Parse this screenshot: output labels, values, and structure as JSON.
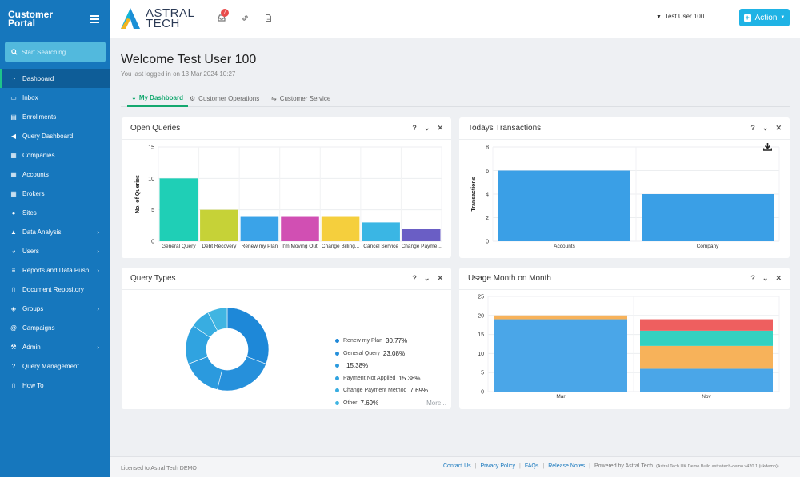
{
  "sidebar": {
    "title": "Customer\nPortal",
    "search_placeholder": "Start Searching...",
    "items": [
      {
        "label": "Dashboard",
        "icon": "tachometer-icon",
        "chevron": false,
        "active": true
      },
      {
        "label": "Inbox",
        "icon": "inbox-icon",
        "chevron": false
      },
      {
        "label": "Enrollments",
        "icon": "id-card-icon",
        "chevron": false
      },
      {
        "label": "Query Dashboard",
        "icon": "megaphone-icon",
        "chevron": false
      },
      {
        "label": "Companies",
        "icon": "building-icon",
        "chevron": false
      },
      {
        "label": "Accounts",
        "icon": "building-icon",
        "chevron": false
      },
      {
        "label": "Brokers",
        "icon": "building-icon",
        "chevron": false
      },
      {
        "label": "Sites",
        "icon": "map-marker-icon",
        "chevron": false
      },
      {
        "label": "Data Analysis",
        "icon": "chart-icon",
        "chevron": true
      },
      {
        "label": "Users",
        "icon": "users-icon",
        "chevron": true
      },
      {
        "label": "Reports and Data Push",
        "icon": "list-icon",
        "chevron": true
      },
      {
        "label": "Document Repository",
        "icon": "document-icon",
        "chevron": false
      },
      {
        "label": "Groups",
        "icon": "layers-icon",
        "chevron": true
      },
      {
        "label": "Campaigns",
        "icon": "at-icon",
        "chevron": false
      },
      {
        "label": "Admin",
        "icon": "wrench-icon",
        "chevron": true
      },
      {
        "label": "Query Management",
        "icon": "question-icon",
        "chevron": false
      },
      {
        "label": "How To",
        "icon": "document-icon",
        "chevron": false
      }
    ]
  },
  "topbar": {
    "logo_text": "ASTRAL\nTECH",
    "notification_count": "7",
    "user_name": "Test User 100",
    "action_label": "Action"
  },
  "main": {
    "welcome": "Welcome Test User 100",
    "last_login": "You last logged in on 13 Mar 2024 10:27",
    "tabs": [
      {
        "label": "My Dashboard",
        "icon": "dashboard-icon",
        "active": true
      },
      {
        "label": "Customer Operations",
        "icon": "cogs-icon",
        "active": false
      },
      {
        "label": "Customer Service",
        "icon": "handshake-icon",
        "active": false
      }
    ]
  },
  "cards": {
    "open_queries": "Open Queries",
    "todays_transactions": "Todays Transactions",
    "query_types": "Query Types",
    "usage_month": "Usage Month on Month",
    "more": "More..."
  },
  "chart_data": [
    {
      "id": "open_queries",
      "type": "bar",
      "ylabel": "No. of Queries",
      "ylim": [
        0,
        15
      ],
      "yticks": [
        0,
        5,
        10,
        15
      ],
      "grid": true,
      "categories": [
        "General Query",
        "Debt Recovery",
        "Renew my Plan",
        "I'm Moving Out",
        "Change Billing...",
        "Cancel Service",
        "Change Payme..."
      ],
      "values": [
        10,
        5,
        4,
        4,
        4,
        3,
        2
      ],
      "colors": [
        "#1fcfb6",
        "#c6d237",
        "#3aa3e8",
        "#d14fb3",
        "#f5cf3d",
        "#3ab6e4",
        "#6a5ec5"
      ]
    },
    {
      "id": "todays_transactions",
      "type": "bar",
      "ylabel": "Transactions",
      "ylim": [
        0,
        8
      ],
      "yticks": [
        0,
        2,
        4,
        6,
        8
      ],
      "grid": true,
      "categories": [
        "Accounts",
        "Company"
      ],
      "values": [
        6,
        4
      ],
      "colors": [
        "#3a9fe6",
        "#3a9fe6"
      ]
    },
    {
      "id": "query_types",
      "type": "pie",
      "series": [
        {
          "name": "Renew my Plan",
          "value": "30.77%",
          "pct": 30.77,
          "color": "#1e88d8"
        },
        {
          "name": "General Query",
          "value": "23.08%",
          "pct": 23.08,
          "color": "#2690db"
        },
        {
          "name": "",
          "value": "15.38%",
          "pct": 15.38,
          "color": "#2b9ade"
        },
        {
          "name": "Payment Not Applied",
          "value": "15.38%",
          "pct": 15.38,
          "color": "#30a3e0"
        },
        {
          "name": "Change Payment Method",
          "value": "7.69%",
          "pct": 7.69,
          "color": "#38ade1"
        },
        {
          "name": "Other",
          "value": "7.69%",
          "pct": 7.69,
          "color": "#40b5e2"
        }
      ]
    },
    {
      "id": "usage_month",
      "type": "bar",
      "stacked": true,
      "ylim": [
        0,
        25
      ],
      "yticks": [
        0,
        5,
        10,
        15,
        20,
        25
      ],
      "grid": true,
      "categories": [
        "Mar",
        "Nov"
      ],
      "series": [
        {
          "values": [
            19,
            6
          ],
          "color": "#4aa6e8"
        },
        {
          "values": [
            1,
            6
          ],
          "color": "#f7b25a"
        },
        {
          "values": [
            0,
            4
          ],
          "color": "#33d1c0"
        },
        {
          "values": [
            0,
            3
          ],
          "color": "#ee5f5f"
        }
      ]
    }
  ],
  "footer": {
    "license": "Licensed to Astral Tech DEMO",
    "links": [
      "Contact Us",
      "Privacy Policy",
      "FAQs",
      "Release Notes"
    ],
    "powered": "Powered by Astral Tech",
    "build": "(Astral Tech UK Demo Build astraltech-demo v420.1 (ukdemo))"
  }
}
